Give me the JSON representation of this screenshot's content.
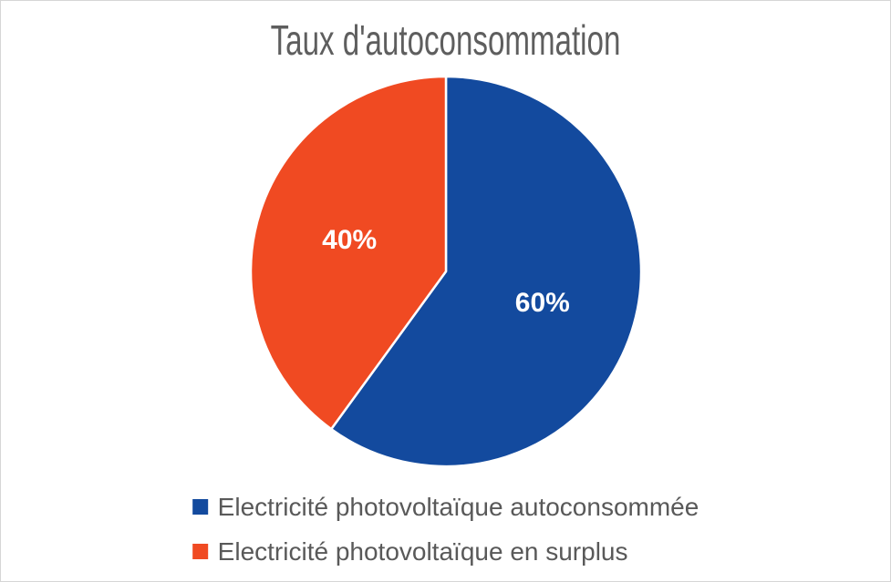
{
  "canvas": {
    "background": "#ffffff",
    "border_color": "#d6d6d6"
  },
  "chart_data": {
    "type": "pie",
    "title": "Taux d'autoconsommation",
    "slices": [
      {
        "label": "Electricité photovoltaïque autoconsommée",
        "value": 60,
        "data_label": "60%",
        "color": "#134a9e"
      },
      {
        "label": "Electricité photovoltaïque en surplus",
        "value": 40,
        "data_label": "40%",
        "color": "#f04a22"
      }
    ],
    "start_angle_deg": 0,
    "direction": "clockwise",
    "legend_position": "bottom",
    "data_labels": "percent",
    "data_label_color": "#ffffff",
    "slice_border_color": "#ffffff",
    "title_color": "#5e5e5e",
    "legend_text_color": "#595959"
  }
}
